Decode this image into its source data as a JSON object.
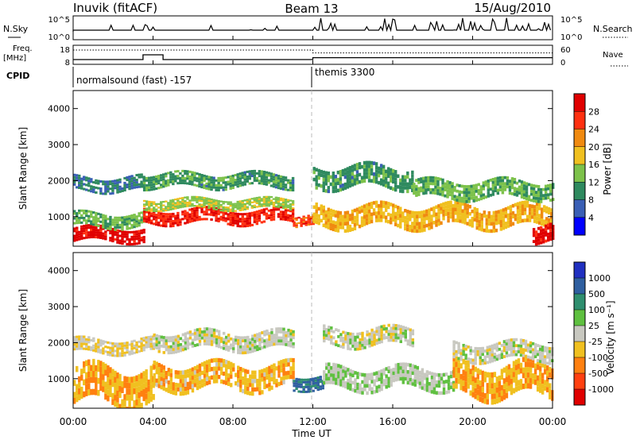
{
  "header": {
    "station": "Inuvik (fitACF)",
    "beam": "Beam 13",
    "date": "15/Aug/2010"
  },
  "summary_panel": {
    "left_label": "N.Sky",
    "right_label": "N.Search",
    "left_ticks": [
      "10^5",
      "10^0"
    ],
    "right_ticks": [
      "10^5",
      "10^0"
    ],
    "freq_label_1": "Freq.",
    "freq_label_2": "[MHz]",
    "freq_ticks": [
      "18",
      "8"
    ],
    "nave_label": "Nave",
    "nave_ticks": [
      "60",
      "0"
    ],
    "cpid_label": "CPID",
    "cpid_segments": [
      "normalsound (fast) -157",
      "themis 3300"
    ]
  },
  "axes": {
    "ylabel_main": "Slant Range [km]",
    "xlabel": "Time UT",
    "yticks": [
      "1000",
      "2000",
      "3000",
      "4000"
    ],
    "xticks": [
      "00:00",
      "04:00",
      "08:00",
      "12:00",
      "16:00",
      "20:00",
      "00:00"
    ]
  },
  "colorbars": {
    "power": {
      "label": "Power [dB]",
      "ticks": [
        "4",
        "8",
        "12",
        "16",
        "20",
        "24",
        "28"
      ],
      "colors": [
        "#0000ff",
        "#3a5fb5",
        "#2f8a5f",
        "#7dc24b",
        "#f0c020",
        "#f08a10",
        "#ff3010",
        "#e00000"
      ]
    },
    "velocity": {
      "label": "Velocity [m s⁻¹]",
      "ticks": [
        "1000",
        "500",
        "100",
        "25",
        "-25",
        "-100",
        "-500",
        "-1000"
      ],
      "colors": [
        "#2030c0",
        "#2f5fa0",
        "#2f8f6f",
        "#5fc040",
        "#c8c8c0",
        "#f0c020",
        "#ff8010",
        "#ff4010",
        "#e00000"
      ]
    }
  },
  "chart_data": [
    {
      "type": "heatmap",
      "name": "power",
      "x_range": [
        0,
        24
      ],
      "y_range": [
        180,
        4500
      ],
      "x_unit": "hours UT",
      "y_unit": "km",
      "value_range": [
        0,
        30
      ],
      "bands": [
        {
          "t0": 0.0,
          "t1": 3.5,
          "r0": 300,
          "r1": 700,
          "value": 28
        },
        {
          "t0": 0.0,
          "t1": 3.5,
          "r0": 700,
          "r1": 1100,
          "value": 12
        },
        {
          "t0": 0.0,
          "t1": 3.5,
          "r0": 1700,
          "r1": 2100,
          "value": 8
        },
        {
          "t0": 3.5,
          "t1": 11.0,
          "r0": 800,
          "r1": 1200,
          "value": 26
        },
        {
          "t0": 3.5,
          "t1": 11.0,
          "r0": 1200,
          "r1": 1500,
          "value": 14
        },
        {
          "t0": 3.5,
          "t1": 11.0,
          "r0": 1800,
          "r1": 2200,
          "value": 10
        },
        {
          "t0": 11.0,
          "t1": 12.0,
          "r0": 700,
          "r1": 1000,
          "value": 24
        },
        {
          "t0": 12.0,
          "t1": 24.0,
          "r0": 700,
          "r1": 1300,
          "value": 18
        },
        {
          "t0": 12.0,
          "t1": 17.0,
          "r0": 1800,
          "r1": 2400,
          "value": 10
        },
        {
          "t0": 17.0,
          "t1": 24.0,
          "r0": 1500,
          "r1": 2000,
          "value": 12
        },
        {
          "t0": 23.0,
          "t1": 24.0,
          "r0": 300,
          "r1": 800,
          "value": 28
        }
      ]
    },
    {
      "type": "heatmap",
      "name": "velocity",
      "x_range": [
        0,
        24
      ],
      "y_range": [
        180,
        4500
      ],
      "x_unit": "hours UT",
      "y_unit": "km",
      "value_range": [
        -1000,
        1000
      ],
      "bands": [
        {
          "t0": 0.0,
          "t1": 4.0,
          "r0": 300,
          "r1": 1300,
          "value": -300
        },
        {
          "t0": 0.0,
          "t1": 4.0,
          "r0": 1700,
          "r1": 2100,
          "value": -80
        },
        {
          "t0": 4.0,
          "t1": 11.0,
          "r0": 700,
          "r1": 1400,
          "value": -250
        },
        {
          "t0": 4.0,
          "t1": 11.0,
          "r0": 1800,
          "r1": 2300,
          "value": 0
        },
        {
          "t0": 11.0,
          "t1": 12.5,
          "r0": 700,
          "r1": 1100,
          "value": 600
        },
        {
          "t0": 12.5,
          "t1": 19.0,
          "r0": 700,
          "r1": 1300,
          "value": 80
        },
        {
          "t0": 12.5,
          "t1": 17.0,
          "r0": 1900,
          "r1": 2400,
          "value": 0
        },
        {
          "t0": 19.0,
          "t1": 24.0,
          "r0": 500,
          "r1": 1400,
          "value": -300
        },
        {
          "t0": 19.0,
          "t1": 24.0,
          "r0": 1500,
          "r1": 2000,
          "value": 0
        }
      ]
    }
  ]
}
